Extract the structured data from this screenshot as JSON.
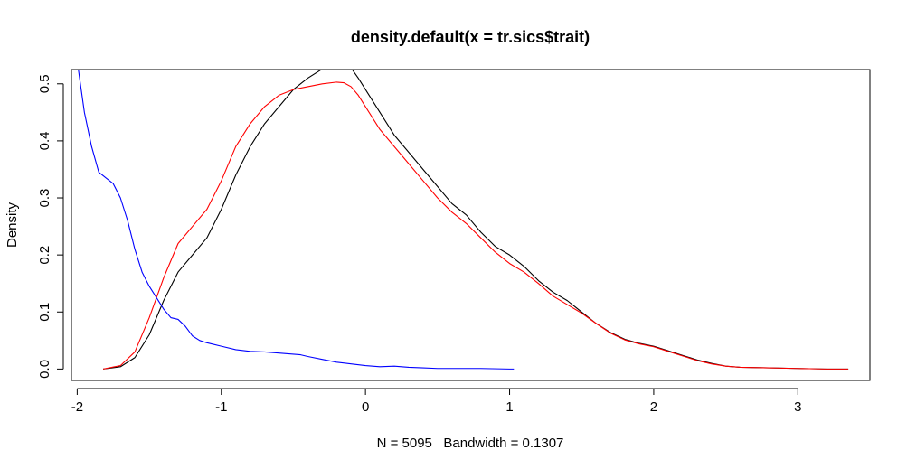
{
  "chart_data": {
    "type": "line",
    "title": "density.default(x = tr.sics$trait)",
    "xlabel": "N = 5095   Bandwidth = 0.1307",
    "ylabel": "Density",
    "xlim": [
      -2.04,
      3.5
    ],
    "ylim": [
      -0.02,
      0.525
    ],
    "grid": false,
    "legend": "none",
    "x_ticks": [
      -2,
      -1,
      0,
      1,
      2,
      3
    ],
    "x_tick_labels": [
      "-2",
      "-1",
      "0",
      "1",
      "2",
      "3"
    ],
    "y_ticks": [
      0.0,
      0.1,
      0.2,
      0.3,
      0.4,
      0.5
    ],
    "y_tick_labels": [
      "0.0",
      "0.1",
      "0.2",
      "0.3",
      "0.4",
      "0.5"
    ],
    "series": [
      {
        "color": "#000000",
        "x": [
          -1.82,
          -1.7,
          -1.6,
          -1.5,
          -1.4,
          -1.3,
          -1.2,
          -1.1,
          -1.0,
          -0.9,
          -0.8,
          -0.7,
          -0.6,
          -0.5,
          -0.4,
          -0.3,
          -0.2,
          -0.15,
          -0.1,
          -0.05,
          0.0,
          0.1,
          0.2,
          0.3,
          0.4,
          0.5,
          0.6,
          0.7,
          0.8,
          0.9,
          1.0,
          1.1,
          1.2,
          1.3,
          1.4,
          1.5,
          1.6,
          1.7,
          1.8,
          1.9,
          2.0,
          2.1,
          2.2,
          2.3,
          2.4,
          2.5,
          2.6,
          2.8,
          3.0,
          3.2,
          3.35
        ],
        "y": [
          0.0,
          0.004,
          0.02,
          0.06,
          0.12,
          0.17,
          0.2,
          0.23,
          0.28,
          0.34,
          0.39,
          0.43,
          0.46,
          0.49,
          0.51,
          0.526,
          0.534,
          0.535,
          0.528,
          0.51,
          0.49,
          0.45,
          0.41,
          0.38,
          0.35,
          0.32,
          0.29,
          0.27,
          0.24,
          0.215,
          0.2,
          0.18,
          0.155,
          0.135,
          0.12,
          0.1,
          0.08,
          0.064,
          0.052,
          0.045,
          0.04,
          0.032,
          0.024,
          0.016,
          0.01,
          0.005,
          0.003,
          0.002,
          0.001,
          0.0,
          0.0
        ]
      },
      {
        "color": "#ff0000",
        "x": [
          -1.82,
          -1.7,
          -1.6,
          -1.5,
          -1.4,
          -1.3,
          -1.2,
          -1.1,
          -1.0,
          -0.9,
          -0.8,
          -0.7,
          -0.6,
          -0.5,
          -0.4,
          -0.3,
          -0.2,
          -0.15,
          -0.1,
          -0.05,
          0.0,
          0.1,
          0.2,
          0.3,
          0.4,
          0.5,
          0.6,
          0.7,
          0.8,
          0.9,
          1.0,
          1.1,
          1.2,
          1.3,
          1.4,
          1.5,
          1.6,
          1.7,
          1.8,
          1.9,
          2.0,
          2.1,
          2.2,
          2.3,
          2.4,
          2.5,
          2.6,
          2.8,
          3.0,
          3.2,
          3.35
        ],
        "y": [
          0.0,
          0.006,
          0.03,
          0.09,
          0.16,
          0.22,
          0.25,
          0.28,
          0.33,
          0.39,
          0.43,
          0.46,
          0.48,
          0.49,
          0.495,
          0.5,
          0.503,
          0.502,
          0.495,
          0.48,
          0.46,
          0.42,
          0.39,
          0.36,
          0.33,
          0.3,
          0.275,
          0.255,
          0.23,
          0.205,
          0.185,
          0.17,
          0.15,
          0.128,
          0.113,
          0.098,
          0.08,
          0.063,
          0.051,
          0.044,
          0.039,
          0.031,
          0.023,
          0.015,
          0.009,
          0.005,
          0.003,
          0.002,
          0.001,
          0.0,
          0.0
        ]
      },
      {
        "color": "#0000ff",
        "x": [
          -2.0,
          -1.95,
          -1.9,
          -1.85,
          -1.8,
          -1.75,
          -1.7,
          -1.65,
          -1.6,
          -1.55,
          -1.5,
          -1.45,
          -1.4,
          -1.35,
          -1.3,
          -1.25,
          -1.2,
          -1.15,
          -1.1,
          -1.0,
          -0.9,
          -0.8,
          -0.7,
          -0.6,
          -0.5,
          -0.45,
          -0.4,
          -0.3,
          -0.2,
          -0.1,
          0.0,
          0.1,
          0.2,
          0.3,
          0.4,
          0.5,
          0.6,
          0.8,
          1.0,
          1.03
        ],
        "y": [
          0.54,
          0.45,
          0.39,
          0.345,
          0.335,
          0.325,
          0.3,
          0.26,
          0.21,
          0.17,
          0.145,
          0.125,
          0.105,
          0.09,
          0.087,
          0.075,
          0.058,
          0.05,
          0.046,
          0.04,
          0.034,
          0.031,
          0.03,
          0.028,
          0.026,
          0.025,
          0.022,
          0.017,
          0.012,
          0.009,
          0.006,
          0.004,
          0.005,
          0.003,
          0.002,
          0.001,
          0.001,
          0.001,
          0.0,
          0.0
        ]
      }
    ]
  }
}
